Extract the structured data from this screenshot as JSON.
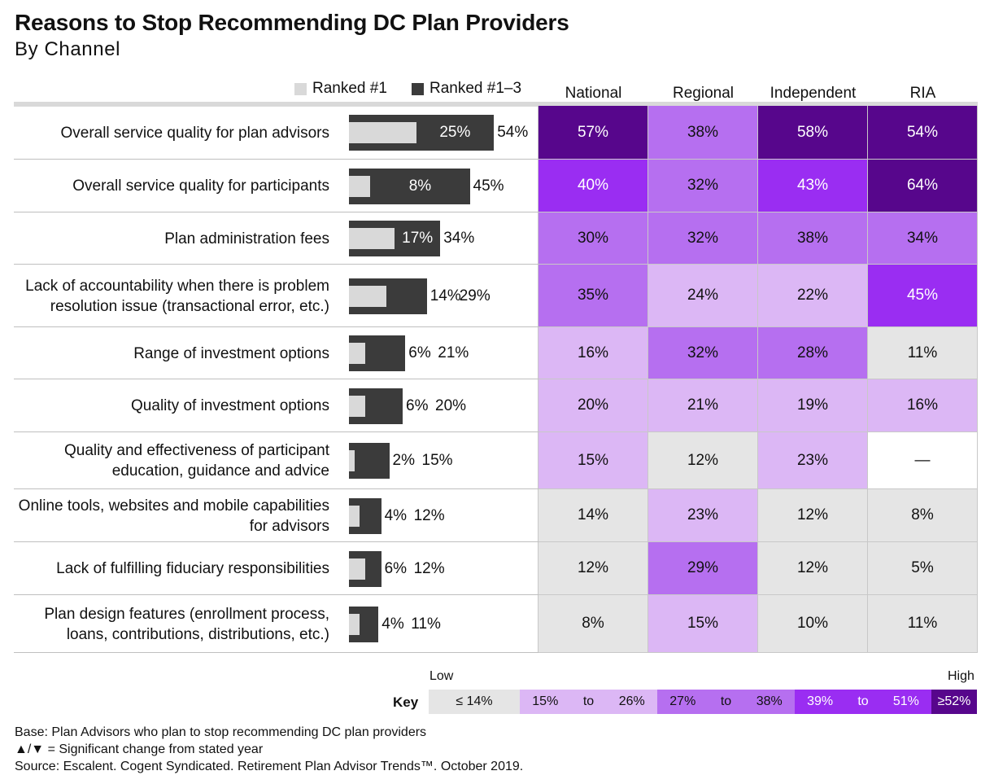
{
  "title": "Reasons to Stop Recommending DC Plan Providers",
  "subtitle": "By Channel",
  "legend": {
    "ranked1": "Ranked #1",
    "ranked13": "Ranked #1–3"
  },
  "colors": {
    "bar_dark": "#3b3b3b",
    "bar_light": "#d9d9d9",
    "heat_low": "#e5e5e5",
    "heat_mid1": "#dcb7f5",
    "heat_mid2": "#b66ff0",
    "heat_mid3": "#9a2df2",
    "heat_high": "#57068c",
    "heat_none": "#ffffff"
  },
  "chart_data": {
    "type": "table",
    "title": "Reasons to Stop Recommending DC Plan Providers",
    "subtitle": "By Channel",
    "columns": [
      "National",
      "Regional",
      "Independent",
      "RIA"
    ],
    "rows": [
      {
        "label": "Overall service quality for plan advisors",
        "ranked1": 25,
        "ranked13": 54,
        "ranked1_label": "25%",
        "ranked13_label": "54%",
        "cells": [
          {
            "text": "57%",
            "level": 4
          },
          {
            "text": "38%",
            "level": 2
          },
          {
            "text": "58%",
            "level": 4
          },
          {
            "text": "54%",
            "level": 4
          }
        ]
      },
      {
        "label": "Overall service quality for participants",
        "ranked1": 8,
        "ranked13": 45,
        "ranked1_label": "8%",
        "ranked13_label": "45%",
        "cells": [
          {
            "text": "40%",
            "level": 3
          },
          {
            "text": "32%",
            "level": 2
          },
          {
            "text": "43%",
            "level": 3
          },
          {
            "text": "64%",
            "level": 4
          }
        ]
      },
      {
        "label": "Plan administration fees",
        "ranked1": 17,
        "ranked13": 34,
        "ranked1_label": "17%",
        "ranked13_label": "34%",
        "cells": [
          {
            "text": "30%",
            "level": 2
          },
          {
            "text": "32%",
            "level": 2
          },
          {
            "text": "38%",
            "level": 2
          },
          {
            "text": "34%",
            "level": 2
          }
        ]
      },
      {
        "label": "Lack of accountability when there is problem resolution issue (transactional error, etc.)",
        "ranked1": 14,
        "ranked13": 29,
        "ranked1_label": "14%",
        "ranked13_label": "29%",
        "cells": [
          {
            "text": "35%",
            "level": 2
          },
          {
            "text": "24%",
            "level": 1
          },
          {
            "text": "22%",
            "level": 1
          },
          {
            "text": "45%",
            "level": 3
          }
        ]
      },
      {
        "label": "Range of investment options",
        "ranked1": 6,
        "ranked13": 21,
        "ranked1_label": "6%",
        "ranked13_label": "21%",
        "cells": [
          {
            "text": "16%",
            "level": 1
          },
          {
            "text": "32%",
            "level": 2
          },
          {
            "text": "28%",
            "level": 2
          },
          {
            "text": "11%",
            "level": 0
          }
        ]
      },
      {
        "label": "Quality of investment options",
        "ranked1": 6,
        "ranked13": 20,
        "ranked1_label": "6%",
        "ranked13_label": "20%",
        "cells": [
          {
            "text": "20%",
            "level": 1
          },
          {
            "text": "21%",
            "level": 1
          },
          {
            "text": "19%",
            "level": 1
          },
          {
            "text": "16%",
            "level": 1
          }
        ]
      },
      {
        "label": "Quality and effectiveness of participant education, guidance and advice",
        "ranked1": 2,
        "ranked13": 15,
        "ranked1_label": "2%",
        "ranked13_label": "15%",
        "cells": [
          {
            "text": "15%",
            "level": 1
          },
          {
            "text": "12%",
            "level": 0
          },
          {
            "text": "23%",
            "level": 1
          },
          {
            "text": "—",
            "level": -1
          }
        ]
      },
      {
        "label": "Online tools, websites and mobile capabilities for advisors",
        "ranked1": 4,
        "ranked13": 12,
        "ranked1_label": "4%",
        "ranked13_label": "12%",
        "cells": [
          {
            "text": "14%",
            "level": 0
          },
          {
            "text": "23%",
            "level": 1
          },
          {
            "text": "12%",
            "level": 0
          },
          {
            "text": "8%",
            "level": 0
          }
        ]
      },
      {
        "label": "Lack of fulfilling fiduciary responsibilities",
        "ranked1": 6,
        "ranked13": 12,
        "ranked1_label": "6%",
        "ranked13_label": "12%",
        "cells": [
          {
            "text": "12%",
            "level": 0
          },
          {
            "text": "29%",
            "level": 2
          },
          {
            "text": "12%",
            "level": 0
          },
          {
            "text": "5%",
            "level": 0
          }
        ]
      },
      {
        "label": "Plan design features (enrollment process, loans, contributions, distributions, etc.)",
        "ranked1": 4,
        "ranked13": 11,
        "ranked1_label": "4%",
        "ranked13_label": "11%",
        "cells": [
          {
            "text": "8%",
            "level": 0
          },
          {
            "text": "15%",
            "level": 1
          },
          {
            "text": "10%",
            "level": 0
          },
          {
            "text": "11%",
            "level": 0
          }
        ]
      }
    ]
  },
  "key": {
    "low": "Low",
    "high": "High",
    "label": "Key",
    "segments": [
      {
        "parts": [
          "≤ 14%"
        ],
        "level": 0
      },
      {
        "parts": [
          "15%",
          "to",
          "26%"
        ],
        "level": 1
      },
      {
        "parts": [
          "27%",
          "to",
          "38%"
        ],
        "level": 2
      },
      {
        "parts": [
          "39%",
          "to",
          "51%"
        ],
        "level": 3
      },
      {
        "parts": [
          "≥52%"
        ],
        "level": 4
      }
    ]
  },
  "footnotes": {
    "base": "Base: Plan Advisors who plan to stop recommending DC plan providers",
    "sig": "▲/▼ = Significant change from stated year",
    "source": "Source: Escalent. Cogent Syndicated. Retirement Plan Advisor Trends™. October 2019."
  }
}
